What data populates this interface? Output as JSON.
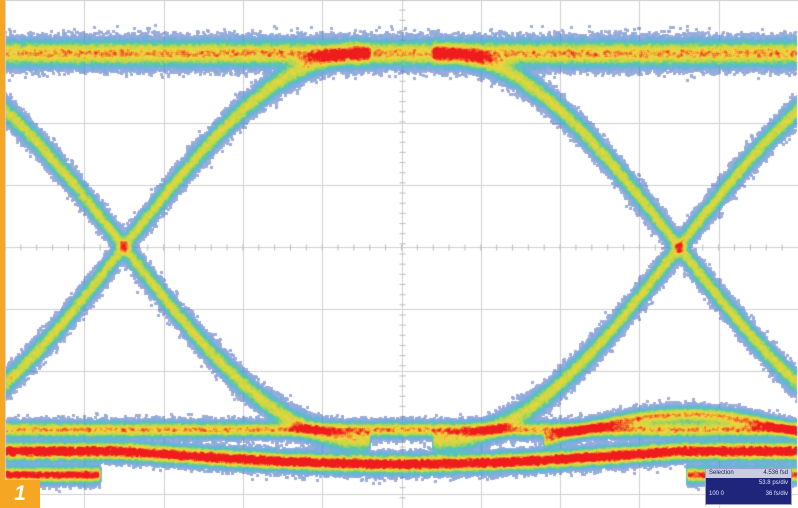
{
  "figure": {
    "number": "1",
    "accent_color": "#f5a623"
  },
  "chart_data": {
    "type": "eye-diagram",
    "title": "",
    "xlabel": "",
    "ylabel": "",
    "grid": true,
    "grid_divisions": {
      "x": 10,
      "y": 8
    },
    "levels": {
      "high": 0.9,
      "low": -0.9,
      "low_spread": 0.15
    },
    "crossings": [
      {
        "x": 1.5,
        "y": 0.0
      },
      {
        "x": 8.5,
        "y": 0.0
      }
    ],
    "unit_interval": 7.0,
    "colormap": [
      "#2a2f9a",
      "#2e7fd0",
      "#3fc2b5",
      "#b9d84a",
      "#f2d43c",
      "#ee1c1c"
    ]
  },
  "measurement": {
    "header_label": "Selection",
    "header_value": "4.536 fsd",
    "line1": "53.8 ps/div",
    "line2_left": "100 0",
    "line2_right": "36 fs/div"
  }
}
